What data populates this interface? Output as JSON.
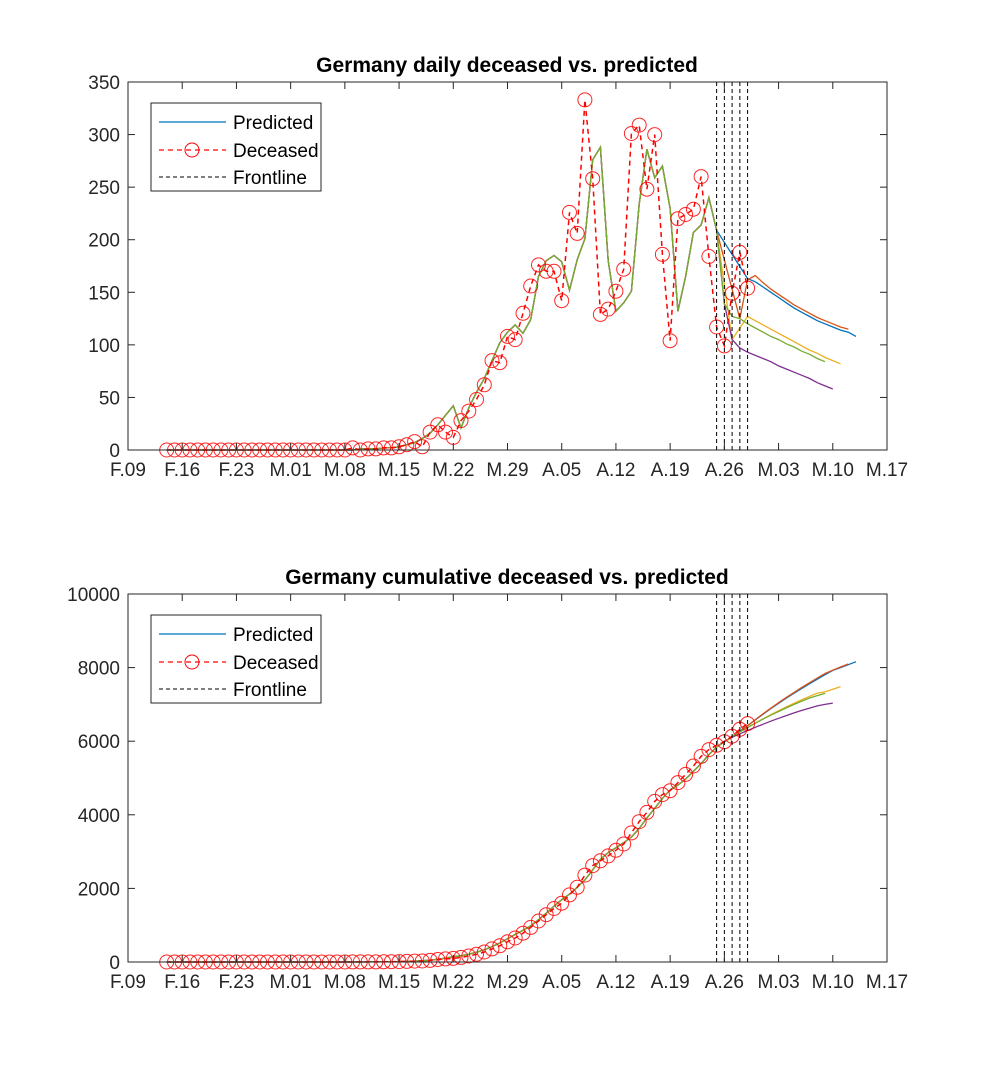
{
  "chart_data": [
    {
      "type": "line",
      "title": "Germany daily deceased vs. predicted",
      "xlim": [
        "02-09",
        "05-17"
      ],
      "ylim": [
        0,
        350
      ],
      "yticks": [
        0,
        50,
        100,
        150,
        200,
        250,
        300,
        350
      ],
      "xticks": [
        {
          "date": "02-09",
          "label": "F.09"
        },
        {
          "date": "02-16",
          "label": "F.16"
        },
        {
          "date": "02-23",
          "label": "F.23"
        },
        {
          "date": "03-01",
          "label": "M.01"
        },
        {
          "date": "03-08",
          "label": "M.08"
        },
        {
          "date": "03-15",
          "label": "M.15"
        },
        {
          "date": "03-22",
          "label": "M.22"
        },
        {
          "date": "03-29",
          "label": "M.29"
        },
        {
          "date": "04-05",
          "label": "A.05"
        },
        {
          "date": "04-12",
          "label": "A.12"
        },
        {
          "date": "04-19",
          "label": "A.19"
        },
        {
          "date": "04-26",
          "label": "A.26"
        },
        {
          "date": "05-03",
          "label": "M.03"
        },
        {
          "date": "05-10",
          "label": "M.10"
        },
        {
          "date": "05-17",
          "label": "M.17"
        }
      ],
      "legend": {
        "position": "top-left",
        "entries": [
          "Predicted",
          "Deceased",
          "Frontline"
        ]
      },
      "grid": false,
      "colors": {
        "deceased": "#FF0000",
        "frontline": "#000000"
      },
      "deceased": {
        "dates": [
          "02-14",
          "02-15",
          "02-16",
          "02-17",
          "02-18",
          "02-19",
          "02-20",
          "02-21",
          "02-22",
          "02-23",
          "02-24",
          "02-25",
          "02-26",
          "02-27",
          "02-28",
          "02-29",
          "03-01",
          "03-02",
          "03-03",
          "03-04",
          "03-05",
          "03-06",
          "03-07",
          "03-08",
          "03-09",
          "03-10",
          "03-11",
          "03-12",
          "03-13",
          "03-14",
          "03-15",
          "03-16",
          "03-17",
          "03-18",
          "03-19",
          "03-20",
          "03-21",
          "03-22",
          "03-23",
          "03-24",
          "03-25",
          "03-26",
          "03-27",
          "03-28",
          "03-29",
          "03-30",
          "03-31",
          "04-01",
          "04-02",
          "04-03",
          "04-04",
          "04-05",
          "04-06",
          "04-07",
          "04-08",
          "04-09",
          "04-10",
          "04-11",
          "04-12",
          "04-13",
          "04-14",
          "04-15",
          "04-16",
          "04-17",
          "04-18",
          "04-19",
          "04-20",
          "04-21",
          "04-22",
          "04-23",
          "04-24",
          "04-25",
          "04-26",
          "04-27",
          "04-28",
          "04-29"
        ],
        "values": [
          0,
          0,
          0,
          0,
          0,
          0,
          0,
          0,
          0,
          0,
          0,
          0,
          0,
          0,
          0,
          0,
          0,
          0,
          0,
          0,
          0,
          0,
          0,
          0,
          2,
          0,
          1,
          1,
          2,
          2,
          3,
          5,
          8,
          3,
          17,
          24,
          17,
          12,
          28,
          37,
          48,
          62,
          85,
          83,
          108,
          105,
          130,
          156,
          176,
          170,
          170,
          142,
          226,
          206,
          333,
          258,
          129,
          134,
          151,
          172,
          301,
          309,
          248,
          300,
          186,
          104,
          220,
          224,
          229,
          260,
          184,
          117,
          99,
          149,
          188,
          154
        ]
      },
      "predicted_history": {
        "values": [
          0,
          0,
          0,
          0,
          0,
          0,
          0,
          0,
          0,
          0,
          0,
          0,
          0,
          0,
          0,
          0,
          0,
          0,
          0,
          0,
          0,
          0,
          0,
          0,
          0,
          1,
          1,
          1,
          2,
          2,
          3,
          5,
          7,
          11,
          16,
          24,
          33,
          42,
          21,
          40,
          55,
          68,
          85,
          102,
          112,
          119,
          111,
          124,
          165,
          180,
          185,
          179,
          152,
          181,
          201,
          276,
          288,
          180,
          132,
          140,
          151,
          234,
          286,
          259,
          270,
          230,
          132,
          165,
          207,
          214,
          240,
          209
        ]
      },
      "frontlines": [
        "04-25",
        "04-26",
        "04-27",
        "04-28",
        "04-29"
      ],
      "forecasts": [
        {
          "color": "#0072BD",
          "dates": [
            "04-29",
            "04-30",
            "05-01",
            "05-02",
            "05-03",
            "05-04",
            "05-05",
            "05-06",
            "05-07",
            "05-08",
            "05-09",
            "05-10",
            "05-11",
            "05-12",
            "05-13"
          ],
          "values": [
            163,
            160,
            155,
            150,
            145,
            140,
            135,
            131,
            127,
            123,
            120,
            117,
            114,
            112,
            108
          ]
        },
        {
          "color": "#D95319",
          "dates": [
            "04-28",
            "04-29",
            "04-30",
            "05-01",
            "05-02",
            "05-03",
            "05-04",
            "05-05",
            "05-06",
            "05-07",
            "05-08",
            "05-09",
            "05-10",
            "05-11",
            "05-12"
          ],
          "values": [
            125,
            162,
            166,
            159,
            153,
            148,
            143,
            138,
            134,
            130,
            126,
            123,
            120,
            117,
            115
          ]
        },
        {
          "color": "#EDB120",
          "dates": [
            "04-27",
            "04-28",
            "04-29",
            "04-30",
            "05-01",
            "05-02",
            "05-03",
            "05-04",
            "05-05",
            "05-06",
            "05-07",
            "05-08",
            "05-09",
            "05-10",
            "05-11"
          ],
          "values": [
            105,
            116,
            127,
            123,
            119,
            115,
            111,
            107,
            103,
            99,
            95,
            92,
            88,
            85,
            82
          ]
        },
        {
          "color": "#7E2F8E",
          "dates": [
            "04-26",
            "04-27",
            "04-28",
            "04-29",
            "04-30",
            "05-01",
            "05-02",
            "05-03",
            "05-04",
            "05-05",
            "05-06",
            "05-07",
            "05-08",
            "05-09",
            "05-10"
          ],
          "values": [
            139,
            105,
            97,
            93,
            90,
            87,
            84,
            80,
            77,
            74,
            71,
            68,
            64,
            61,
            58
          ]
        },
        {
          "color": "#77AC30",
          "dates": [
            "04-26",
            "04-27",
            "04-28",
            "04-29",
            "04-30",
            "05-01",
            "05-02",
            "05-03",
            "05-04",
            "05-05",
            "05-06",
            "05-07",
            "05-08",
            "05-09"
          ],
          "values": [
            139,
            127,
            125,
            120,
            116,
            112,
            108,
            105,
            101,
            98,
            94,
            91,
            87,
            84
          ]
        }
      ]
    },
    {
      "type": "line",
      "title": "Germany cumulative deceased vs. predicted",
      "xlim": [
        "02-09",
        "05-17"
      ],
      "ylim": [
        0,
        10000
      ],
      "yticks": [
        0,
        2000,
        4000,
        6000,
        8000,
        10000
      ],
      "xticks": [
        {
          "date": "02-09",
          "label": "F.09"
        },
        {
          "date": "02-16",
          "label": "F.16"
        },
        {
          "date": "02-23",
          "label": "F.23"
        },
        {
          "date": "03-01",
          "label": "M.01"
        },
        {
          "date": "03-08",
          "label": "M.08"
        },
        {
          "date": "03-15",
          "label": "M.15"
        },
        {
          "date": "03-22",
          "label": "M.22"
        },
        {
          "date": "03-29",
          "label": "M.29"
        },
        {
          "date": "04-05",
          "label": "A.05"
        },
        {
          "date": "04-12",
          "label": "A.12"
        },
        {
          "date": "04-19",
          "label": "A.19"
        },
        {
          "date": "04-26",
          "label": "A.26"
        },
        {
          "date": "05-03",
          "label": "M.03"
        },
        {
          "date": "05-10",
          "label": "M.10"
        },
        {
          "date": "05-17",
          "label": "M.17"
        }
      ],
      "legend": {
        "position": "top-left",
        "entries": [
          "Predicted",
          "Deceased",
          "Frontline"
        ]
      },
      "grid": false,
      "colors": {
        "deceased": "#FF0000",
        "frontline": "#000000"
      },
      "deceased": {
        "values": [
          0,
          0,
          0,
          0,
          0,
          0,
          0,
          0,
          0,
          0,
          0,
          0,
          0,
          0,
          0,
          0,
          0,
          0,
          0,
          0,
          0,
          0,
          0,
          0,
          2,
          2,
          3,
          4,
          6,
          8,
          11,
          16,
          24,
          27,
          44,
          68,
          85,
          97,
          125,
          162,
          210,
          272,
          357,
          440,
          548,
          653,
          783,
          939,
          1115,
          1285,
          1455,
          1597,
          1823,
          2029,
          2362,
          2620,
          2749,
          2883,
          3034,
          3206,
          3507,
          3816,
          4064,
          4364,
          4550,
          4654,
          4874,
          5098,
          5327,
          5587,
          5771,
          5888,
          5987,
          6136,
          6324,
          6478
        ]
      },
      "predicted_history": {
        "values": [
          0,
          0,
          0,
          0,
          0,
          0,
          0,
          0,
          0,
          0,
          0,
          0,
          0,
          0,
          0,
          0,
          0,
          0,
          0,
          0,
          0,
          0,
          0,
          0,
          0,
          1,
          2,
          3,
          5,
          7,
          10,
          15,
          22,
          33,
          49,
          73,
          106,
          148,
          169,
          209,
          264,
          332,
          417,
          519,
          631,
          750,
          861,
          985,
          1150,
          1330,
          1515,
          1694,
          1846,
          2027,
          2228,
          2504,
          2792,
          2972,
          3104,
          3244,
          3395,
          3629,
          3915,
          4174,
          4444,
          4674,
          4806,
          4971,
          5178,
          5392,
          5632,
          5841
        ]
      },
      "frontlines": [
        "04-25",
        "04-26",
        "04-27",
        "04-28",
        "04-29"
      ],
      "forecasts": [
        {
          "color": "#0072BD",
          "dates": [
            "04-29",
            "04-30",
            "05-01",
            "05-02",
            "05-03",
            "05-04",
            "05-05",
            "05-06",
            "05-07",
            "05-08",
            "05-09",
            "05-10",
            "05-11",
            "05-12",
            "05-13"
          ],
          "values": [
            6420,
            6580,
            6735,
            6885,
            7030,
            7170,
            7305,
            7436,
            7563,
            7686,
            7806,
            7923,
            8000,
            8080,
            8160
          ]
        },
        {
          "color": "#D95319",
          "dates": [
            "04-28",
            "04-29",
            "04-30",
            "05-01",
            "05-02",
            "05-03",
            "05-04",
            "05-05",
            "05-06",
            "05-07",
            "05-08",
            "05-09",
            "05-10",
            "05-11",
            "05-12"
          ],
          "values": [
            6250,
            6420,
            6586,
            6745,
            6898,
            7046,
            7189,
            7327,
            7461,
            7591,
            7717,
            7840,
            7930,
            8015,
            8098
          ]
        },
        {
          "color": "#EDB120",
          "dates": [
            "04-28",
            "04-29",
            "04-30",
            "05-01",
            "05-02",
            "05-03",
            "05-04",
            "05-05",
            "05-06",
            "05-07",
            "05-08",
            "05-09",
            "05-10",
            "05-11"
          ],
          "values": [
            6250,
            6372,
            6492,
            6608,
            6720,
            6828,
            6932,
            7032,
            7128,
            7220,
            7308,
            7340,
            7412,
            7482
          ]
        },
        {
          "color": "#7E2F8E",
          "dates": [
            "04-26",
            "04-27",
            "04-28",
            "04-29",
            "04-30",
            "05-01",
            "05-02",
            "05-03",
            "05-04",
            "05-05",
            "05-06",
            "05-07",
            "05-08",
            "05-09",
            "05-10"
          ],
          "values": [
            6000,
            6105,
            6200,
            6290,
            6378,
            6462,
            6544,
            6622,
            6697,
            6768,
            6836,
            6900,
            6960,
            7000,
            7035
          ]
        },
        {
          "color": "#77AC30",
          "dates": [
            "04-27",
            "04-28",
            "04-29",
            "04-30",
            "05-01",
            "05-02",
            "05-03",
            "05-04",
            "05-05",
            "05-06",
            "05-07",
            "05-08",
            "05-09"
          ],
          "values": [
            6130,
            6255,
            6375,
            6490,
            6600,
            6706,
            6808,
            6906,
            7000,
            7090,
            7175,
            7240,
            7300
          ]
        }
      ]
    }
  ]
}
